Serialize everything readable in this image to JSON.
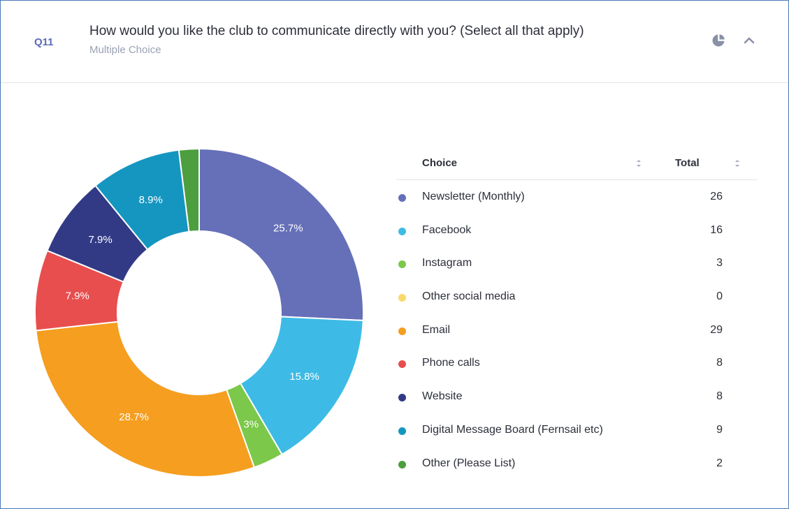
{
  "question": {
    "number": "Q11",
    "title": "How would you like the club to communicate directly with you? (Select all that apply)",
    "type": "Multiple Choice"
  },
  "header_icons": [
    "pie-chart-icon",
    "chevron-up-icon"
  ],
  "table": {
    "col_choice": "Choice",
    "col_total": "Total"
  },
  "chart_data": {
    "type": "pie",
    "donut": true,
    "categories": [
      "Newsletter (Monthly)",
      "Facebook",
      "Instagram",
      "Other social media",
      "Email",
      "Phone calls",
      "Website",
      "Digital Message Board (Fernsail etc)",
      "Other (Please List)"
    ],
    "values": [
      26,
      16,
      3,
      0,
      29,
      8,
      8,
      9,
      2
    ],
    "labels": [
      "25.7%",
      "15.8%",
      "3%",
      "",
      "28.7%",
      "7.9%",
      "7.9%",
      "8.9%",
      ""
    ],
    "colors": [
      "#6570b8",
      "#3dbbe6",
      "#7bc84a",
      "#f9d96a",
      "#f59e20",
      "#e84e4e",
      "#323a86",
      "#1596c0",
      "#4c9e3e"
    ]
  }
}
